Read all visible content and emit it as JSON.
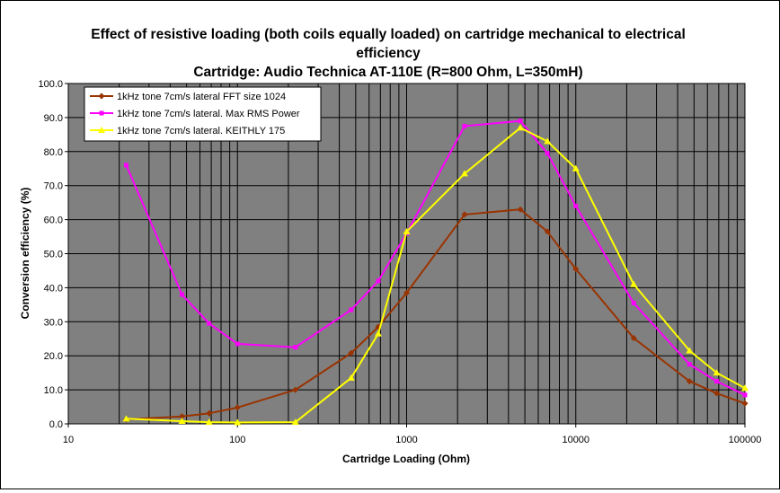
{
  "chart_data": {
    "type": "line",
    "title_lines": [
      "Effect of resistive loading (both coils equally loaded) on cartridge mechanical to electrical",
      "efficiency",
      "Cartridge: Audio Technica AT-110E (R=800 Ohm, L=350mH)"
    ],
    "xlabel": "Cartridge Loading (Ohm)",
    "ylabel": "Conversion efficiency (%)",
    "xscale": "log",
    "xlim": [
      10,
      100000
    ],
    "ylim": [
      0,
      100
    ],
    "x_ticks": [
      "10",
      "100",
      "1000",
      "10000",
      "100000"
    ],
    "y_ticks": [
      "0.0",
      "10.0",
      "20.0",
      "30.0",
      "40.0",
      "50.0",
      "60.0",
      "70.0",
      "80.0",
      "90.0",
      "100.0"
    ],
    "grid": true,
    "legend_position": "top-left",
    "plot_background": "#808080",
    "series": [
      {
        "name": "1kHz tone 7cm/s lateral FFT size 1024",
        "color": "#993300",
        "marker": "diamond",
        "points": [
          [
            22,
            1.3
          ],
          [
            47,
            2.2
          ],
          [
            68,
            3.1
          ],
          [
            100,
            4.8
          ],
          [
            220,
            10.0
          ],
          [
            470,
            20.8
          ],
          [
            680,
            28.5
          ],
          [
            1000,
            38.5
          ],
          [
            2200,
            61.5
          ],
          [
            4700,
            63.0
          ],
          [
            6800,
            56.5
          ],
          [
            10000,
            45.5
          ],
          [
            22000,
            25.2
          ],
          [
            47000,
            12.5
          ],
          [
            68000,
            9.0
          ],
          [
            100000,
            6.0
          ]
        ]
      },
      {
        "name": "1kHz tone 7cm/s lateral. Max RMS Power",
        "color": "#ff00ff",
        "marker": "square",
        "points": [
          [
            22,
            76.0
          ],
          [
            47,
            38.0
          ],
          [
            68,
            29.5
          ],
          [
            100,
            23.5
          ],
          [
            220,
            22.5
          ],
          [
            470,
            33.5
          ],
          [
            680,
            42.0
          ],
          [
            1000,
            56.0
          ],
          [
            2200,
            87.5
          ],
          [
            4700,
            89.0
          ],
          [
            6800,
            79.5
          ],
          [
            10000,
            64.0
          ],
          [
            22000,
            35.5
          ],
          [
            47000,
            17.5
          ],
          [
            68000,
            12.5
          ],
          [
            100000,
            8.5
          ]
        ]
      },
      {
        "name": "1kHz tone 7cm/s lateral. KEITHLY 175",
        "color": "#ffff00",
        "marker": "triangle",
        "points": [
          [
            22,
            1.5
          ],
          [
            47,
            0.8
          ],
          [
            68,
            0.5
          ],
          [
            100,
            0.4
          ],
          [
            220,
            0.5
          ],
          [
            470,
            13.5
          ],
          [
            680,
            26.5
          ],
          [
            1000,
            56.5
          ],
          [
            2200,
            73.5
          ],
          [
            4700,
            87.0
          ],
          [
            6800,
            83.0
          ],
          [
            10000,
            75.0
          ],
          [
            22000,
            41.0
          ],
          [
            47000,
            21.5
          ],
          [
            68000,
            15.0
          ],
          [
            100000,
            10.5
          ]
        ]
      }
    ]
  }
}
